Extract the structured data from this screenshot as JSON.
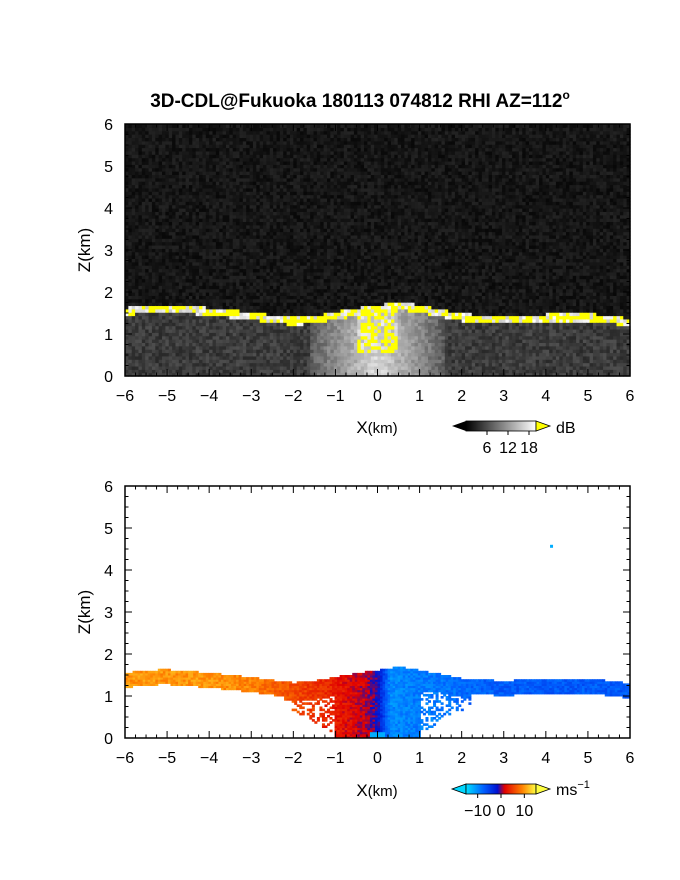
{
  "title": "3D-CDL@Fukuoka 180113 074812 RHI AZ=112",
  "title_suffix": "o",
  "chart_data": [
    {
      "type": "heatmap",
      "name": "backscatter",
      "xlabel": "X",
      "xlabel_unit": "(km)",
      "ylabel": "Z(km)",
      "xlim": [
        -6,
        6
      ],
      "ylim": [
        0,
        6
      ],
      "x_ticks": [
        "-6",
        "-5",
        "-4",
        "-3",
        "-2",
        "-1",
        "0",
        "1",
        "2",
        "3",
        "4",
        "5",
        "6"
      ],
      "y_ticks": [
        "0",
        "1",
        "2",
        "3",
        "4",
        "5",
        "6"
      ],
      "colorbar": {
        "unit": "dB",
        "ticks": [
          "6",
          "12",
          "18"
        ],
        "range": [
          0,
          20
        ],
        "high_color": "#ffff00",
        "low_color": "#000000"
      },
      "layer_top_km": [
        [
          -6.0,
          1.55
        ],
        [
          -5.5,
          1.62
        ],
        [
          -5.0,
          1.63
        ],
        [
          -4.5,
          1.6
        ],
        [
          -4.0,
          1.55
        ],
        [
          -3.5,
          1.5
        ],
        [
          -3.0,
          1.45
        ],
        [
          -2.5,
          1.38
        ],
        [
          -2.0,
          1.32
        ],
        [
          -1.5,
          1.36
        ],
        [
          -1.0,
          1.45
        ],
        [
          -0.5,
          1.55
        ],
        [
          0.0,
          1.62
        ],
        [
          0.5,
          1.7
        ],
        [
          1.0,
          1.62
        ],
        [
          1.5,
          1.52
        ],
        [
          2.0,
          1.42
        ],
        [
          2.5,
          1.38
        ],
        [
          3.0,
          1.37
        ],
        [
          3.5,
          1.38
        ],
        [
          4.0,
          1.4
        ],
        [
          4.5,
          1.42
        ],
        [
          5.0,
          1.42
        ],
        [
          5.5,
          1.36
        ],
        [
          6.0,
          1.3
        ]
      ],
      "max_echo_km": 6.0
    },
    {
      "type": "heatmap",
      "name": "radial-velocity",
      "xlabel": "X",
      "xlabel_unit": "(km)",
      "ylabel": "Z(km)",
      "xlim": [
        -6,
        6
      ],
      "ylim": [
        0,
        6
      ],
      "x_ticks": [
        "-6",
        "-5",
        "-4",
        "-3",
        "-2",
        "-1",
        "0",
        "1",
        "2",
        "3",
        "4",
        "5",
        "6"
      ],
      "y_ticks": [
        "0",
        "1",
        "2",
        "3",
        "4",
        "5",
        "6"
      ],
      "colorbar": {
        "unit": "ms",
        "unit_exp": "−1",
        "ticks": [
          "−10",
          "0",
          "10"
        ],
        "range": [
          -15,
          15
        ]
      },
      "velocity_ms_by_x": [
        [
          -6.0,
          10
        ],
        [
          -4.0,
          10
        ],
        [
          -3.0,
          9
        ],
        [
          -2.0,
          6
        ],
        [
          -1.0,
          3
        ],
        [
          -0.3,
          1
        ],
        [
          0.0,
          -1
        ],
        [
          0.3,
          -10
        ],
        [
          1.0,
          -9
        ],
        [
          1.5,
          -9
        ],
        [
          2.0,
          -8
        ],
        [
          3.0,
          -7
        ],
        [
          4.0,
          -7
        ],
        [
          5.0,
          -7
        ],
        [
          6.0,
          -7
        ]
      ],
      "isolated_echo": {
        "x_km": 4.1,
        "z_km": 4.6
      }
    }
  ]
}
